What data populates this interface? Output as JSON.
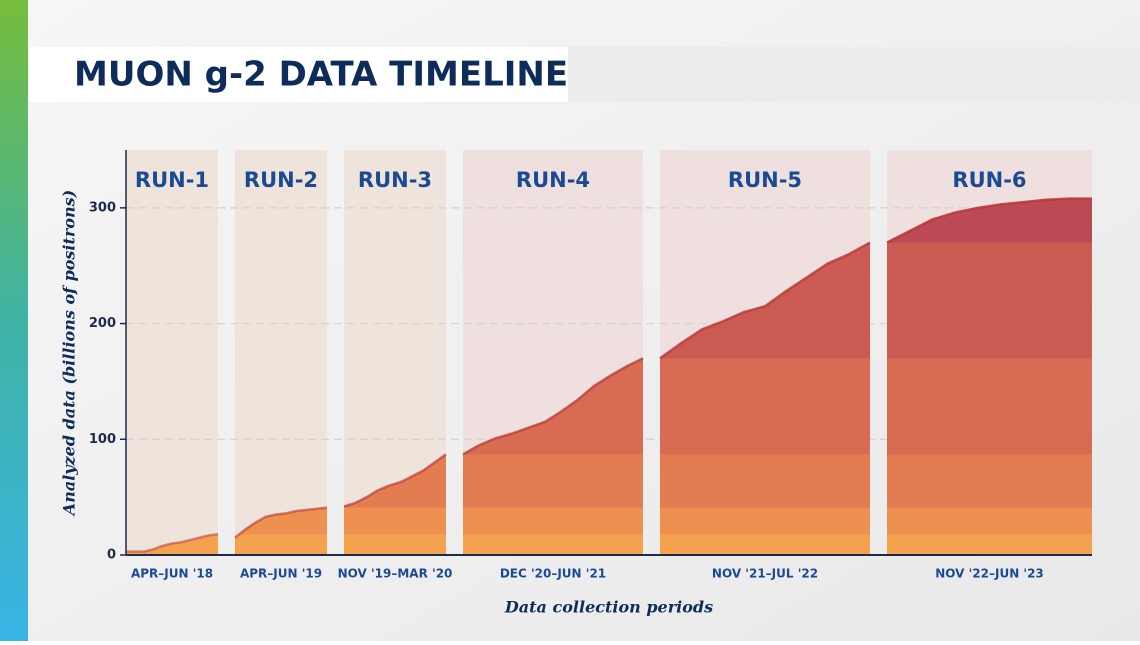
{
  "chart_data": {
    "type": "area",
    "title": "MUON g-2 DATA TIMELINE",
    "y_label": "Analyzed data (billions of positrons)",
    "x_label": "Data collection periods",
    "ylim": [
      0,
      350
    ],
    "yticks": [
      0,
      100,
      200,
      300
    ],
    "grid": true,
    "series": [
      {
        "name": "RUN-1",
        "period": "APR–JUN '18",
        "color": "#f5a24e",
        "values": [
          3,
          3,
          3,
          5,
          8,
          10,
          11,
          13,
          15,
          17,
          18
        ]
      },
      {
        "name": "RUN-2",
        "period": "APR–JUN '19",
        "color": "#ee9150",
        "values": [
          15,
          22,
          28,
          33,
          35,
          36,
          38,
          39,
          40,
          41
        ]
      },
      {
        "name": "RUN-3",
        "period": "NOV '19–MAR '20",
        "color": "#e37d51",
        "values": [
          42,
          45,
          50,
          56,
          60,
          63,
          68,
          73,
          80,
          87
        ]
      },
      {
        "name": "RUN-4",
        "period": "DEC '20–JUN '21",
        "color": "#d86b52",
        "values": [
          87,
          95,
          101,
          105,
          110,
          115,
          124,
          134,
          146,
          155,
          163,
          170
        ]
      },
      {
        "name": "RUN-5",
        "period": "NOV '21–JUL '22",
        "color": "#cb5a53",
        "values": [
          170,
          183,
          195,
          202,
          210,
          215,
          228,
          240,
          252,
          260,
          270
        ]
      },
      {
        "name": "RUN-6",
        "period": "NOV '22–JUN '23",
        "color": "#bb4a54",
        "values": [
          270,
          280,
          290,
          296,
          300,
          303,
          305,
          307,
          308,
          308
        ]
      }
    ]
  }
}
